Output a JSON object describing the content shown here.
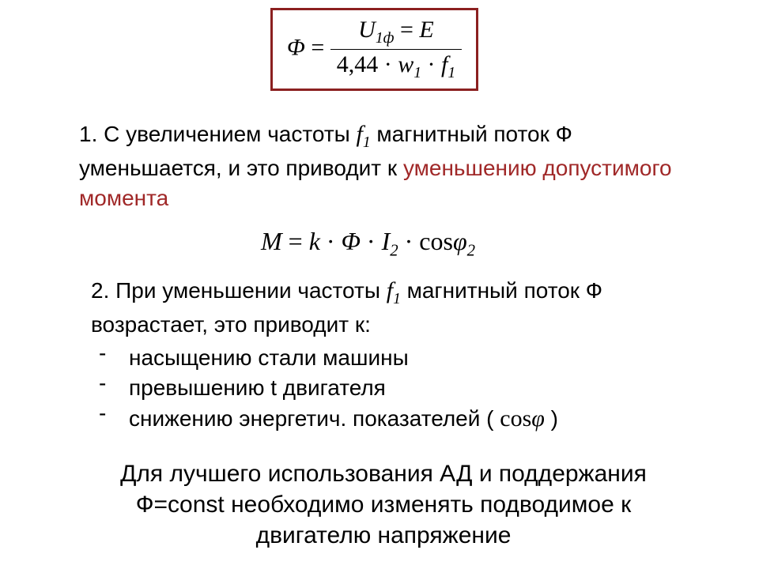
{
  "formula_box": {
    "lhs": "Φ",
    "eq": "=",
    "num_part1": "U",
    "num_sub1": "1ф",
    "num_eq": " = ",
    "num_part2": "E",
    "den_const": "4,44",
    "den_dot1": " · ",
    "den_w": "w",
    "den_wsub": "1",
    "den_dot2": " · ",
    "den_f": "f",
    "den_fsub": "1"
  },
  "p1": {
    "n": "1. ",
    "t1": "С увеличением частоты ",
    "f1": "f",
    "f1sub": "1",
    "t2": "  магнитный поток Ф уменьшается, и это приводит к ",
    "red": "уменьшению допустимого момента"
  },
  "moment": {
    "M": "M",
    "eq1": " = ",
    "k": "k",
    "d1": " · ",
    "phi": "Φ",
    "d2": " · ",
    "I": "I",
    "Isub": "2",
    "d3": " · ",
    "cos": "cos",
    "varphi": "φ",
    "varphisub": "2"
  },
  "p2": {
    "n": "2. ",
    "t1": "При уменьшении частоты ",
    "f1": "f",
    "f1sub": "1",
    "t2": "  магнитный поток Ф возрастает, это приводит к:",
    "b1": "насыщению стали машины",
    "b2": "превышению t двигателя",
    "b3a": "снижению энергетич. показателей ( ",
    "b3cos": "cos",
    "b3phi": "φ",
    "b3b": " )"
  },
  "conclusion": {
    "text": "Для лучшего использования АД и поддержания Ф=const необходимо изменять подводимое к двигателю напряжение"
  },
  "style": {
    "border_color": "#8b2020",
    "red_text": "#a02828",
    "body_font": "Arial",
    "math_font": "Times New Roman",
    "body_size_pt": 21,
    "math_size_pt": 22,
    "bg": "#ffffff"
  }
}
